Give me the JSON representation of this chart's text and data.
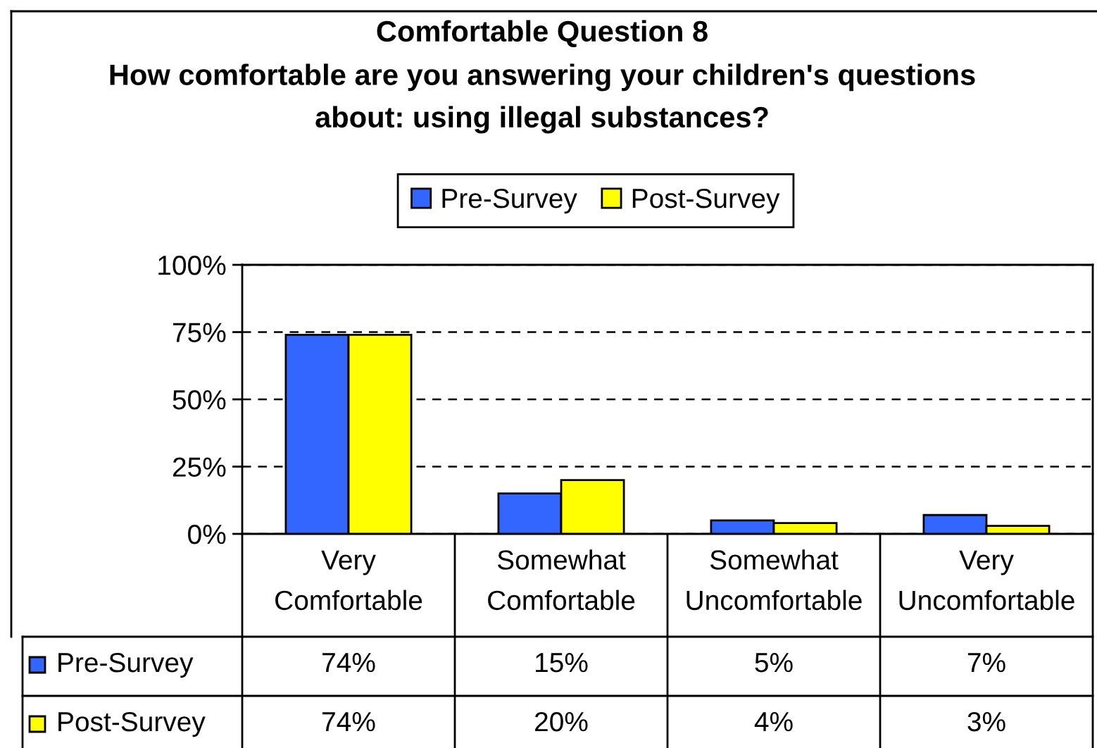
{
  "chart_data": {
    "type": "bar",
    "title": "Comfortable Question 8",
    "subtitle": "How comfortable are you answering your children's questions about: using illegal substances?",
    "categories": [
      "Very Comfortable",
      "Somewhat Comfortable",
      "Somewhat Uncomfortable",
      "Very Uncomfortable"
    ],
    "series": [
      {
        "name": "Pre-Survey",
        "color": "#3366ff",
        "values": [
          74,
          15,
          5,
          7
        ],
        "value_labels": [
          "74%",
          "15%",
          "5%",
          "7%"
        ]
      },
      {
        "name": "Post-Survey",
        "color": "#ffff00",
        "values": [
          74,
          20,
          4,
          3
        ],
        "value_labels": [
          "74%",
          "20%",
          "4%",
          "3%"
        ]
      }
    ],
    "ylim": [
      0,
      100
    ],
    "yticks": [
      {
        "value": 0,
        "label": "0%"
      },
      {
        "value": 25,
        "label": "25%"
      },
      {
        "value": 50,
        "label": "50%"
      },
      {
        "value": 75,
        "label": "75%"
      },
      {
        "value": 100,
        "label": "100%"
      }
    ],
    "grid": "y",
    "legend": "top"
  }
}
